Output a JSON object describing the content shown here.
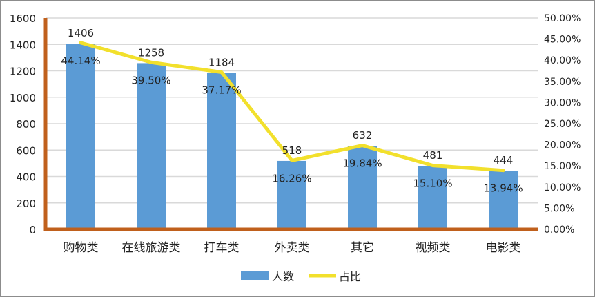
{
  "chart_data": {
    "type": "bar+line",
    "categories": [
      "购物类",
      "在线旅游类",
      "打车类",
      "外卖类",
      "其它",
      "视频类",
      "电影类"
    ],
    "series": [
      {
        "name": "人数",
        "type": "bar",
        "axis": "left",
        "color": "#5B9BD5",
        "values": [
          1406,
          1258,
          1184,
          518,
          632,
          481,
          444
        ],
        "labels": [
          "1406",
          "1258",
          "1184",
          "518",
          "632",
          "481",
          "444"
        ]
      },
      {
        "name": "占比",
        "type": "line",
        "axis": "right",
        "color": "#F2E02C",
        "values": [
          44.14,
          39.5,
          37.17,
          16.26,
          19.84,
          15.1,
          13.94
        ],
        "labels": [
          "44.14%",
          "39.50%",
          "37.17%",
          "16.26%",
          "19.84%",
          "15.10%",
          "13.94%"
        ]
      }
    ],
    "y_left": {
      "range": [
        0,
        1600
      ],
      "ticks": [
        "0",
        "200",
        "400",
        "600",
        "800",
        "1000",
        "1200",
        "1400",
        "1600"
      ]
    },
    "y_right": {
      "range": [
        0,
        50
      ],
      "ticks": [
        "0.00%",
        "5.00%",
        "10.00%",
        "15.00%",
        "20.00%",
        "25.00%",
        "30.00%",
        "35.00%",
        "40.00%",
        "45.00%",
        "50.00%"
      ]
    },
    "axis_color": "#C0601C",
    "grid": true,
    "legend_position": "bottom"
  }
}
